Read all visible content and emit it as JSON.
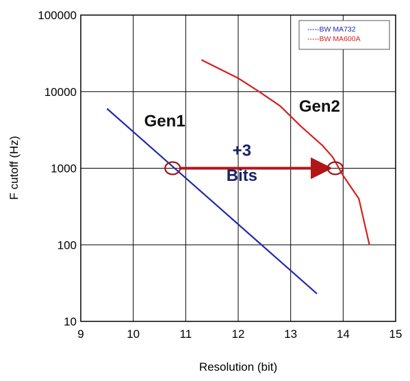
{
  "chart_data": {
    "type": "line",
    "title": "",
    "xlabel": "Resolution (bit)",
    "ylabel": "F cutoff (Hz)",
    "xlim": [
      9,
      15
    ],
    "ylim": [
      10,
      100000
    ],
    "yscale": "log",
    "x_ticks": [
      "9",
      "10",
      "11",
      "12",
      "13",
      "14",
      "15"
    ],
    "y_ticks": [
      "10",
      "100",
      "1000",
      "10000",
      "100000"
    ],
    "grid": true,
    "legend_position": "top-right",
    "series": [
      {
        "name": "-----BW MA732",
        "color": "#1f2aa8",
        "x": [
          9.5,
          13.5
        ],
        "y": [
          6000,
          23
        ]
      },
      {
        "name": "-----BW MA600A",
        "color": "#d41f1f",
        "x": [
          11.3,
          12.0,
          12.4,
          12.8,
          13.2,
          13.6,
          13.8,
          14.0,
          14.3,
          14.5
        ],
        "y": [
          26000,
          15000,
          10000,
          6500,
          3500,
          2000,
          1400,
          800,
          400,
          100
        ]
      }
    ],
    "annotations": [
      {
        "text": "Gen1",
        "x": 10.6,
        "y": 3500,
        "color": "#111111"
      },
      {
        "text": "Gen2",
        "x": 13.55,
        "y": 5500,
        "color": "#111111"
      },
      {
        "text": "+3",
        "x": 12.07,
        "y": 1450,
        "color": "#1a2266"
      },
      {
        "text": "Bits",
        "x": 12.07,
        "y": 680,
        "color": "#1a2266"
      }
    ],
    "markers": [
      {
        "x": 10.75,
        "y": 1000,
        "color": "#a01515"
      },
      {
        "x": 13.85,
        "y": 1000,
        "color": "#a01515"
      }
    ],
    "arrow": {
      "from": [
        10.75,
        1000
      ],
      "to": [
        13.85,
        1000
      ],
      "color": "#b01818"
    }
  }
}
